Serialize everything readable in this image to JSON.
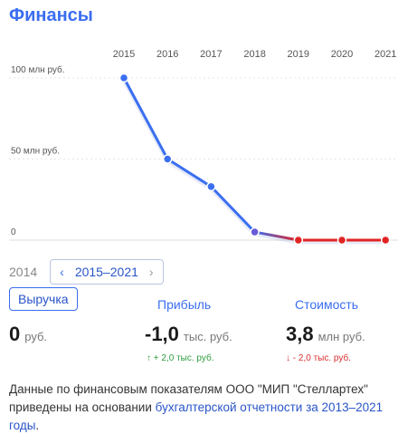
{
  "title": "Финансы",
  "chart_data": {
    "type": "line",
    "x": [
      "2015",
      "2016",
      "2017",
      "2018",
      "2019",
      "2020",
      "2021"
    ],
    "series": [
      {
        "values": [
          100,
          50,
          33,
          5,
          0.0038,
          0.0038,
          0.0038
        ]
      }
    ],
    "ytick_labels": [
      "100 млн руб.",
      "50 млн руб.",
      "0"
    ],
    "ytick_values": [
      100,
      50,
      0
    ],
    "ylim": [
      0,
      100
    ],
    "grid": true,
    "line_color": "#3b6ff0",
    "negative_color": "#e02424"
  },
  "period": {
    "prev_year": "2014",
    "range": "2015–2021",
    "prev_icon": "chevron-left-icon",
    "next_icon": "chevron-right-icon"
  },
  "metrics": {
    "revenue": {
      "label": "Выручка",
      "value": "0",
      "unit": "руб."
    },
    "profit": {
      "label": "Прибыль",
      "value": "-1,0",
      "unit": "тыс. руб.",
      "delta_arrow": "↑",
      "delta": "+ 2,0 тыс. руб."
    },
    "cost": {
      "label": "Стоимость",
      "value": "3,8",
      "unit": "млн руб.",
      "delta_arrow": "↓",
      "delta": "- 2,0 тыс. руб."
    }
  },
  "note": {
    "text": "Данные по финансовым показателям ООО \"МИП \"Стеллартех\" приведены на основании ",
    "link": "бухгалтерской отчетности за 2013–2021 годы",
    "end": "."
  }
}
